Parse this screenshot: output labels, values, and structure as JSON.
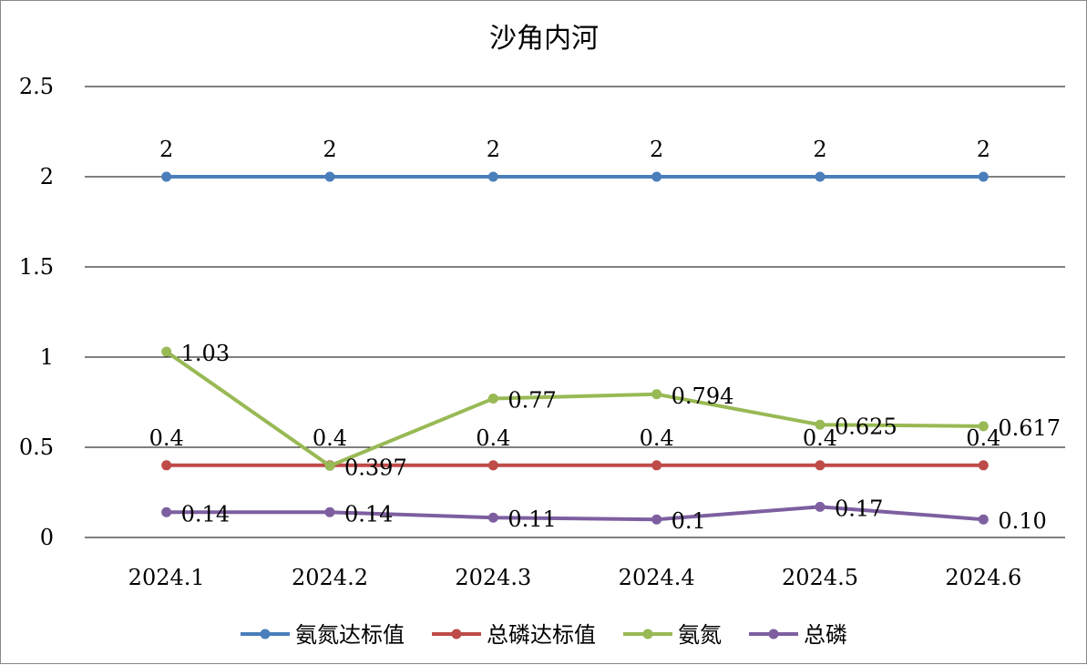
{
  "chart_data": {
    "type": "line",
    "title": "沙角内河",
    "categories": [
      "2024.1",
      "2024.2",
      "2024.3",
      "2024.4",
      "2024.5",
      "2024.6"
    ],
    "ylim": [
      0,
      2.5
    ],
    "yticks": [
      "0",
      "0.5",
      "1",
      "1.5",
      "2",
      "2.5"
    ],
    "grid": true,
    "legend_position": "bottom",
    "series": [
      {
        "name": "氨氮达标值",
        "color": "#4a7ebb",
        "values": [
          2,
          2,
          2,
          2,
          2,
          2
        ],
        "labels": [
          "2",
          "2",
          "2",
          "2",
          "2",
          "2"
        ],
        "label_pos": "above"
      },
      {
        "name": "总磷达标值",
        "color": "#be4b48",
        "values": [
          0.4,
          0.4,
          0.4,
          0.4,
          0.4,
          0.4
        ],
        "labels": [
          "0.4",
          "0.4",
          "0.4",
          "0.4",
          "0.4",
          "0.4"
        ],
        "label_pos": "above"
      },
      {
        "name": "氨氮",
        "color": "#98b954",
        "values": [
          1.03,
          0.397,
          0.77,
          0.794,
          0.625,
          0.617
        ],
        "labels": [
          "1.03",
          "0.397",
          "0.77",
          "0.794",
          "0.625",
          "0.617"
        ],
        "label_pos": "right"
      },
      {
        "name": "总磷",
        "color": "#7d5fa0",
        "values": [
          0.14,
          0.14,
          0.11,
          0.1,
          0.17,
          0.1
        ],
        "labels": [
          "0.14",
          "0.14",
          "0.11",
          "0.1",
          "0.17",
          "0.10"
        ],
        "label_pos": "right"
      }
    ]
  }
}
